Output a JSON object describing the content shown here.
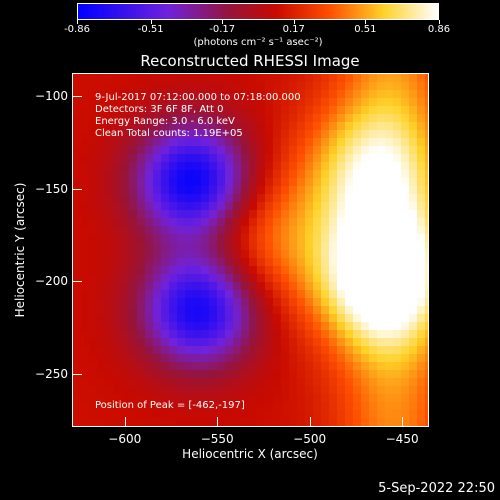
{
  "colorbar": {
    "ticks": [
      "-0.86",
      "-0.51",
      "-0.17",
      "0.17",
      "0.51",
      "0.86"
    ],
    "tick_values": [
      -0.86,
      -0.51,
      -0.17,
      0.17,
      0.51,
      0.86
    ],
    "range": [
      -0.86,
      0.86
    ],
    "unit_label": "(photons cm⁻² s⁻¹ asec⁻²)"
  },
  "chart_data": {
    "type": "heatmap",
    "title": "Reconstructed RHESSI Image",
    "xlabel": "Heliocentric X (arcsec)",
    "ylabel": "Heliocentric Y (arcsec)",
    "xlim": [
      -628,
      -436
    ],
    "ylim": [
      -278,
      -88
    ],
    "xticks": [
      -600,
      -550,
      -500,
      -450
    ],
    "yticks": [
      -100,
      -150,
      -200,
      -250
    ],
    "xtick_labels": [
      "−600",
      "−550",
      "−500",
      "−450"
    ],
    "ytick_labels": [
      "−100",
      "−150",
      "−200",
      "−250"
    ],
    "colormap": "blue-purple-red-yellow-white",
    "peak": [
      -462,
      -197
    ],
    "sources": [
      {
        "kind": "max",
        "x": -462,
        "y": -197,
        "value": 0.86
      },
      {
        "kind": "max",
        "x": -470,
        "y": -140,
        "value": 0.55
      },
      {
        "kind": "max",
        "x": -525,
        "y": -176,
        "value": 0.4
      },
      {
        "kind": "max",
        "x": -600,
        "y": -124,
        "value": 0.1
      },
      {
        "kind": "min",
        "x": -563,
        "y": -146,
        "value": -0.86
      },
      {
        "kind": "min",
        "x": -560,
        "y": -215,
        "value": -0.8
      }
    ],
    "annotations": {
      "time": "9-Jul-2017 07:12:00.000 to 07:18:00.000",
      "detectors": "Detectors: 3F 6F 8F, Att 0",
      "energy": "Energy Range: 3.0 - 6.0 keV",
      "clean": "Clean     Total counts: 1.19E+05",
      "peak": "Position of Peak = [-462,-197]"
    }
  },
  "footer": {
    "date": "5-Sep-2022 22:50"
  }
}
